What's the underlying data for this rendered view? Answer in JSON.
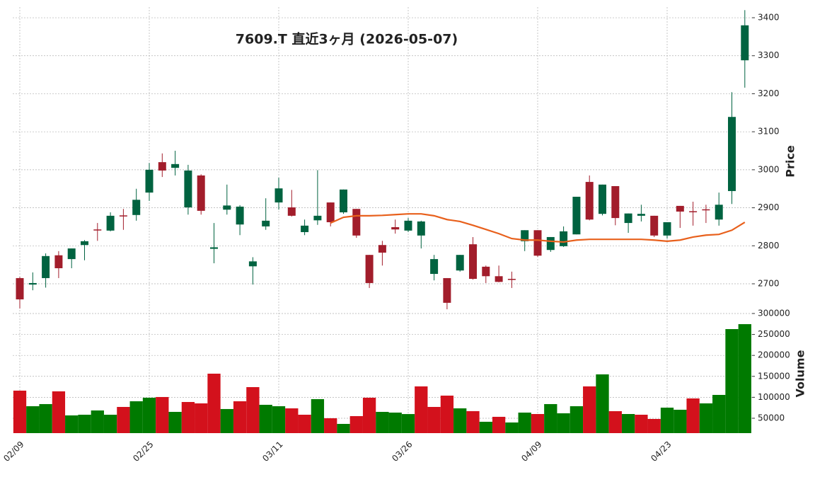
{
  "chart_data": {
    "type": "candlestick",
    "title": "7609.T  直近3ヶ月  (2026-05-07)",
    "categories": [
      "02/09",
      null,
      null,
      null,
      null,
      null,
      null,
      null,
      null,
      null,
      "02/25",
      null,
      null,
      null,
      null,
      null,
      null,
      null,
      null,
      null,
      "03/11",
      null,
      null,
      null,
      null,
      null,
      null,
      null,
      null,
      null,
      "03/26",
      null,
      null,
      null,
      null,
      null,
      null,
      null,
      null,
      null,
      "04/09",
      null,
      null,
      null,
      null,
      null,
      null,
      null,
      null,
      null,
      "04/23",
      null,
      null,
      null,
      null,
      null,
      null
    ],
    "open": [
      2715,
      2698,
      2715,
      2775,
      2765,
      2802,
      2843,
      2840,
      2880,
      2881,
      2940,
      3020,
      3005,
      2901,
      2985,
      2792,
      2895,
      2856,
      2746,
      2851,
      2914,
      2901,
      2836,
      2867,
      2914,
      2888,
      2897,
      2776,
      2802,
      2849,
      2840,
      2827,
      2726,
      2715,
      2735,
      2804,
      2745,
      2720,
      2713,
      2812,
      2841,
      2789,
      2799,
      2830,
      2968,
      2884,
      2957,
      2860,
      2879,
      2879,
      2827,
      2905,
      2891,
      2896,
      2869,
      2944,
      3288
    ],
    "high": [
      2718,
      2730,
      2780,
      2786,
      2793,
      2815,
      2860,
      2888,
      2897,
      2950,
      3018,
      3043,
      3050,
      3013,
      2988,
      2860,
      2961,
      2907,
      2770,
      2925,
      2979,
      2947,
      2869,
      2999,
      2914,
      2948,
      2897,
      2776,
      2813,
      2869,
      2873,
      2866,
      2776,
      2715,
      2776,
      2823,
      2748,
      2748,
      2732,
      2841,
      2841,
      2823,
      2851,
      2929,
      2985,
      2961,
      2957,
      2885,
      2908,
      2879,
      2862,
      2905,
      2916,
      2908,
      2940,
      3204,
      3420
    ],
    "low": [
      2635,
      2683,
      2690,
      2715,
      2741,
      2762,
      2813,
      2838,
      2842,
      2866,
      2918,
      2981,
      2985,
      2882,
      2882,
      2754,
      2882,
      2828,
      2698,
      2842,
      2895,
      2877,
      2828,
      2855,
      2851,
      2884,
      2821,
      2689,
      2748,
      2832,
      2836,
      2793,
      2709,
      2633,
      2732,
      2711,
      2702,
      2704,
      2689,
      2786,
      2771,
      2784,
      2797,
      2830,
      2867,
      2880,
      2854,
      2834,
      2864,
      2823,
      2819,
      2847,
      2853,
      2860,
      2853,
      2910,
      3216
    ],
    "close": [
      2659,
      2702,
      2773,
      2741,
      2793,
      2812,
      2841,
      2879,
      2878,
      2921,
      3000,
      2998,
      3015,
      2998,
      2892,
      2796,
      2906,
      2903,
      2759,
      2866,
      2951,
      2879,
      2853,
      2879,
      2862,
      2948,
      2827,
      2702,
      2782,
      2843,
      2866,
      2864,
      2765,
      2650,
      2776,
      2713,
      2720,
      2705,
      2711,
      2841,
      2774,
      2823,
      2838,
      2929,
      2869,
      2961,
      2873,
      2885,
      2884,
      2827,
      2862,
      2890,
      2889,
      2894,
      2908,
      3139,
      3380
    ],
    "ma": {
      "color": "#e8601c",
      "values": [
        null,
        null,
        null,
        null,
        null,
        null,
        null,
        null,
        null,
        null,
        null,
        null,
        null,
        null,
        null,
        null,
        null,
        null,
        null,
        null,
        null,
        null,
        null,
        null,
        2860,
        2875,
        2879,
        2879,
        2880,
        2882,
        2884,
        2884,
        2879,
        2869,
        2864,
        2854,
        2843,
        2832,
        2819,
        2815,
        2815,
        2812,
        2810,
        2815,
        2817,
        2817,
        2817,
        2817,
        2817,
        2815,
        2812,
        2815,
        2823,
        2828,
        2830,
        2841,
        2862
      ]
    },
    "up_color": "#006340",
    "down_color": "#a21d2b",
    "ylabel": "Price",
    "ylim": [
      2633,
      3428
    ],
    "yticks": [
      2700,
      2800,
      2900,
      3000,
      3100,
      3200,
      3300,
      3400
    ],
    "grid": true,
    "volume": {
      "ylabel": "Volume",
      "up_color": "#007a00",
      "down_color": "#d3111c",
      "values": [
        115900,
        78700,
        83800,
        114200,
        56800,
        58400,
        68600,
        58400,
        77000,
        90500,
        99000,
        100700,
        65200,
        88800,
        85500,
        156400,
        72000,
        90500,
        124300,
        82100,
        78700,
        73600,
        58400,
        95600,
        50000,
        36500,
        55100,
        99000,
        65200,
        63500,
        60000,
        126000,
        77000,
        104000,
        73600,
        67000,
        41600,
        53400,
        39900,
        63500,
        60100,
        83800,
        61800,
        78700,
        126000,
        154700,
        66900,
        60100,
        58400,
        48300,
        75300,
        70300,
        97300,
        85500,
        105700,
        262800,
        274600
      ],
      "ylim": [
        14500,
        310100
      ],
      "yticks": [
        50000,
        100000,
        150000,
        200000,
        250000,
        300000
      ]
    }
  }
}
